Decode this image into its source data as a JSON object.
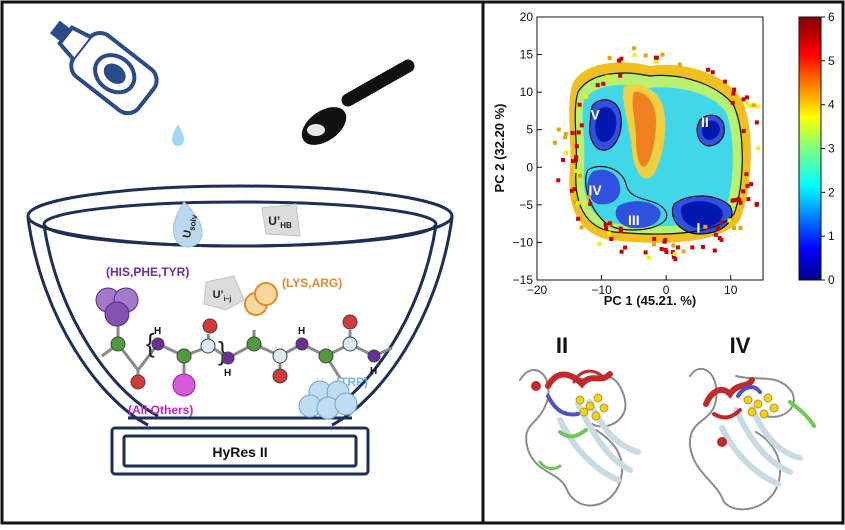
{
  "left_panel": {
    "bowl_label": "HyRes II",
    "terms": {
      "usolv_main": "U",
      "usolv_sub": "solv",
      "uhb_main": "U’",
      "uhb_sub": "HB",
      "uij_main": "U’",
      "uij_sub": "i–j"
    },
    "groups": {
      "aromatic": "(HIS,PHE,TYR)",
      "charged": "(LYS,ARG)",
      "trp": "(TRP)",
      "others": "(All Others)"
    },
    "h_label": "H",
    "colors": {
      "navy": "#233a66",
      "purple": "#6a2f9a",
      "orange": "#e08a2a",
      "magenta": "#c021c8",
      "sky": "#7ab6dd",
      "green": "#4f9a3a",
      "red": "#d23a3a"
    }
  },
  "right_panel": {
    "chart_data": {
      "type": "heatmap",
      "xlabel": "PC 1 (45.21. %)",
      "ylabel": "PC 2 (32.20 %)",
      "xlim": [
        -20,
        15
      ],
      "ylim": [
        -15,
        20
      ],
      "x_ticks": [
        "−20",
        "−10",
        "0",
        "10"
      ],
      "y_ticks": [
        "20",
        "15",
        "10",
        "5",
        "0",
        "−5",
        "−10",
        "−15"
      ],
      "colorbar": {
        "min": 0,
        "max": 6,
        "ticks": [
          "6",
          "5",
          "4",
          "3",
          "2",
          "1",
          "0"
        ],
        "colormap": "jet"
      },
      "basins": [
        {
          "label": "I",
          "x": 5,
          "y": -8
        },
        {
          "label": "II",
          "x": 6,
          "y": 6
        },
        {
          "label": "III",
          "x": -5,
          "y": -7
        },
        {
          "label": "IV",
          "x": -11,
          "y": -3
        },
        {
          "label": "V",
          "x": -11,
          "y": 7
        }
      ]
    },
    "structures": [
      {
        "label": "II"
      },
      {
        "label": "IV"
      }
    ]
  }
}
